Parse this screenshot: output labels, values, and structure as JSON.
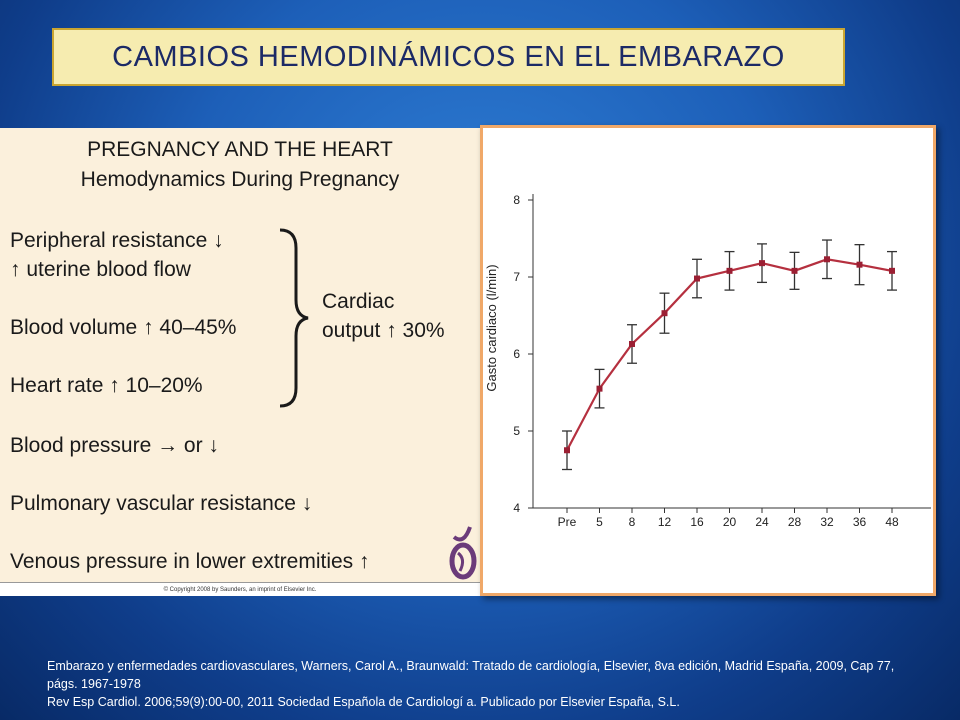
{
  "slide_title": "CAMBIOS HEMODINÁMICOS EN EL EMBARAZO",
  "left_panel": {
    "title1": "PREGNANCY AND THE HEART",
    "title2": "Hemodynamics During Pregnancy",
    "items": [
      "Peripheral resistance ↓",
      "↑ uterine blood flow",
      "Blood volume ↑ 40–45%",
      "Heart rate ↑ 10–20%",
      "Blood pressure → or ↓",
      "Pulmonary vascular resistance ↓",
      "Venous pressure in lower extremities ↑"
    ],
    "side_label1": "Cardiac",
    "side_label2": "output ↑ 30%",
    "copyright": "© Copyright 2008 by Saunders, an imprint of Elsevier Inc."
  },
  "chart_data": {
    "type": "line",
    "ylabel": "Gasto cardiaco (l/min)",
    "ylim": [
      4,
      8
    ],
    "yticks": [
      4,
      5,
      6,
      7,
      8
    ],
    "categories": [
      "Pre",
      "5",
      "8",
      "12",
      "16",
      "20",
      "24",
      "28",
      "32",
      "36",
      "48"
    ],
    "series": [
      {
        "values": [
          4.75,
          5.55,
          6.13,
          6.53,
          6.98,
          7.08,
          7.18,
          7.08,
          7.23,
          7.16,
          7.08
        ],
        "error": [
          0.25,
          0.25,
          0.25,
          0.26,
          0.25,
          0.25,
          0.25,
          0.24,
          0.25,
          0.26,
          0.25
        ]
      }
    ],
    "colors": {
      "line": "#b5303f",
      "marker": "#9b1f33",
      "axis": "#333333"
    }
  },
  "references": [
    "Embarazo y enfermedades cardiovasculares, Warners, Carol A., Braunwald: Tratado de cardiología, Elsevier, 8va edición, Madrid España, 2009, Cap 77, págs. 1967-1978",
    "Rev Esp Cardiol. 2006;59(9):00-00, 2011 Sociedad Española de Cardiologí a. Publicado por Elsevier España, S.L."
  ]
}
